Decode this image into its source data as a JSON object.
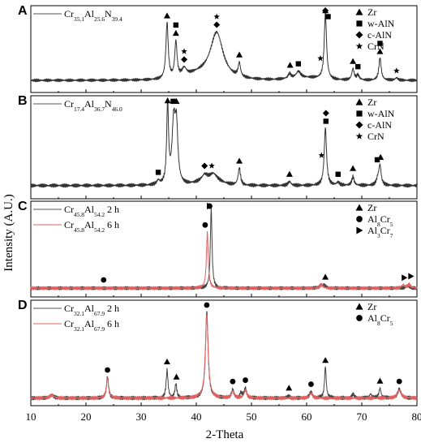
{
  "chart_data": {
    "type": "line",
    "xlabel": "2-Theta",
    "ylabel": "Intensity (A.U.)",
    "xlim": [
      10,
      80
    ],
    "x_ticks": [
      "10",
      "20",
      "30",
      "40",
      "50",
      "60",
      "70",
      "80"
    ],
    "panels": [
      {
        "letter": "A",
        "legend_rows": [
          {
            "text": "Cr35.1Al25.6N39.4",
            "parts": [
              [
                "Cr",
                ""
              ],
              [
                "35.1",
                "sub"
              ],
              [
                "Al",
                ""
              ],
              [
                "25.6",
                "sub"
              ],
              [
                "N",
                ""
              ],
              [
                "39.4",
                "sub"
              ]
            ],
            "color": "#555555"
          }
        ],
        "marker_legend": [
          {
            "symbol": "triangle",
            "text": "Zr"
          },
          {
            "symbol": "square",
            "text": "w-AlN"
          },
          {
            "symbol": "diamond",
            "text": "c-AlN"
          },
          {
            "symbol": "star",
            "text": "CrN"
          }
        ],
        "series": [
          {
            "name": "Cr35.1Al25.6N39.4",
            "color": "#333333",
            "baseline": 0.13,
            "peaks": [
              [
                34.7,
                0.7,
                0.25
              ],
              [
                36.3,
                0.45,
                0.25
              ],
              [
                37.8,
                0.1,
                0.5
              ],
              [
                43.7,
                0.58,
                1.4
              ],
              [
                47.8,
                0.17,
                0.25
              ],
              [
                56.9,
                0.06,
                0.3
              ],
              [
                58.5,
                0.08,
                0.5
              ],
              [
                63.4,
                0.82,
                0.25
              ],
              [
                68.4,
                0.14,
                0.25
              ],
              [
                69.3,
                0.06,
                0.3
              ],
              [
                73.3,
                0.28,
                0.25
              ],
              [
                76.3,
                0.03,
                0.3
              ]
            ],
            "bumps": [
              [
                40.5,
                0.06,
                3
              ],
              [
                60,
                0.03,
                4
              ]
            ]
          }
        ],
        "peak_marks": [
          {
            "x": 34.7,
            "sym": [
              "triangle"
            ]
          },
          {
            "x": 36.3,
            "sym": [
              "triangle",
              "square"
            ]
          },
          {
            "x": 37.8,
            "sym": [
              "diamond",
              "star"
            ]
          },
          {
            "x": 43.7,
            "sym": [
              "diamond",
              "star"
            ]
          },
          {
            "x": 47.8,
            "sym": [
              "triangle"
            ]
          },
          {
            "x": 57.0,
            "sym": [
              "triangle"
            ]
          },
          {
            "x": 58.5,
            "sym": [
              "square"
            ]
          },
          {
            "x": 63.4,
            "sym": [
              "diamond",
              "triangle"
            ]
          },
          {
            "x": 62.5,
            "sym": [
              "star"
            ]
          },
          {
            "x": 63.9,
            "sym": [
              "square"
            ]
          },
          {
            "x": 68.4,
            "sym": [
              "triangle"
            ]
          },
          {
            "x": 69.3,
            "sym": [
              "square"
            ]
          },
          {
            "x": 73.3,
            "sym": [
              "triangle",
              "square"
            ]
          },
          {
            "x": 76.3,
            "sym": [
              "star"
            ]
          }
        ]
      },
      {
        "letter": "B",
        "legend_rows": [
          {
            "text": "Cr17.4Al36.7N46.0",
            "parts": [
              [
                "Cr",
                ""
              ],
              [
                "17.4",
                "sub"
              ],
              [
                "Al",
                ""
              ],
              [
                "36.7",
                "sub"
              ],
              [
                "N",
                ""
              ],
              [
                "46.0",
                "sub"
              ]
            ],
            "color": "#555555"
          }
        ],
        "marker_legend": [
          {
            "symbol": "triangle",
            "text": "Zr"
          },
          {
            "symbol": "square",
            "text": "w-AlN"
          },
          {
            "symbol": "diamond",
            "text": "c-AlN"
          },
          {
            "symbol": "star",
            "text": "CrN"
          }
        ],
        "series": [
          {
            "name": "Cr17.4Al36.7N46.0",
            "color": "#333333",
            "baseline": 0.12,
            "peaks": [
              [
                33.1,
                0.04,
                0.3
              ],
              [
                34.8,
                0.82,
                0.2
              ],
              [
                35.9,
                0.62,
                0.35
              ],
              [
                36.4,
                0.55,
                0.3
              ],
              [
                41.5,
                0.06,
                0.6
              ],
              [
                43.1,
                0.07,
                0.8
              ],
              [
                47.8,
                0.18,
                0.25
              ],
              [
                56.9,
                0.04,
                0.3
              ],
              [
                63.4,
                0.6,
                0.25
              ],
              [
                65.7,
                0.03,
                0.3
              ],
              [
                68.4,
                0.09,
                0.25
              ],
              [
                72.9,
                0.06,
                0.3
              ],
              [
                73.3,
                0.2,
                0.25
              ]
            ],
            "bumps": [
              [
                42.5,
                0.05,
                3
              ]
            ]
          }
        ],
        "peak_marks": [
          {
            "x": 33.1,
            "sym": [
              "square"
            ]
          },
          {
            "x": 34.8,
            "sym": [
              "triangle"
            ]
          },
          {
            "x": 35.8,
            "sym": [
              "square"
            ]
          },
          {
            "x": 36.4,
            "sym": [
              "triangle"
            ]
          },
          {
            "x": 41.5,
            "sym": [
              "diamond"
            ]
          },
          {
            "x": 42.8,
            "sym": [
              "star"
            ]
          },
          {
            "x": 47.8,
            "sym": [
              "triangle"
            ]
          },
          {
            "x": 56.9,
            "sym": [
              "triangle"
            ]
          },
          {
            "x": 62.7,
            "sym": [
              "star"
            ]
          },
          {
            "x": 63.5,
            "sym": [
              "square",
              "diamond"
            ]
          },
          {
            "x": 65.7,
            "sym": [
              "square"
            ]
          },
          {
            "x": 68.4,
            "sym": [
              "triangle"
            ]
          },
          {
            "x": 72.8,
            "sym": [
              "square"
            ]
          },
          {
            "x": 73.4,
            "sym": [
              "triangle"
            ]
          }
        ]
      },
      {
        "letter": "C",
        "legend_rows": [
          {
            "text": "Cr45.8Al54.2 2 h",
            "parts": [
              [
                "Cr",
                ""
              ],
              [
                "45.8",
                "sub"
              ],
              [
                "Al",
                ""
              ],
              [
                "54.2",
                "sub"
              ],
              [
                " 2 h",
                ""
              ]
            ],
            "color": "#555555"
          },
          {
            "text": "Cr45.8Al54.2 6 h",
            "parts": [
              [
                "Cr",
                ""
              ],
              [
                "45.8",
                "sub"
              ],
              [
                "Al",
                ""
              ],
              [
                "54.2",
                "sub"
              ],
              [
                " 6 h",
                ""
              ]
            ],
            "color": "#e06060"
          }
        ],
        "marker_legend": [
          {
            "symbol": "triangle",
            "text": "Zr"
          },
          {
            "symbol": "circle",
            "text": "Al8Cr5",
            "parts": [
              [
                "Al",
                ""
              ],
              [
                "8",
                "sub"
              ],
              [
                "Cr",
                ""
              ],
              [
                "5",
                "sub"
              ]
            ]
          },
          {
            "symbol": "right-triangle",
            "text": "Al3Cr7",
            "parts": [
              [
                "Al",
                ""
              ],
              [
                "3",
                "sub"
              ],
              [
                "Cr",
                ""
              ],
              [
                "7",
                "sub"
              ]
            ]
          }
        ],
        "series": [
          {
            "name": "Cr45.8Al54.2 2 h",
            "color": "#444444",
            "baseline": 0.08,
            "peaks": [
              [
                42.7,
                0.9,
                0.18
              ],
              [
                62.5,
                0.04,
                0.3
              ],
              [
                63.2,
                0.03,
                0.3
              ],
              [
                78.2,
                0.03,
                0.3
              ]
            ],
            "bumps": []
          },
          {
            "name": "Cr45.8Al54.2 6 h",
            "color": "#e06060",
            "baseline": 0.08,
            "peaks": [
              [
                42.0,
                0.62,
                0.2
              ],
              [
                62.7,
                0.04,
                0.3
              ],
              [
                77.5,
                0.04,
                0.3
              ],
              [
                78.6,
                0.04,
                0.3
              ]
            ],
            "bumps": []
          }
        ],
        "peak_marks": [
          {
            "x": 23.2,
            "sym": [
              "circle"
            ]
          },
          {
            "x": 41.6,
            "sym": [
              "circle"
            ]
          },
          {
            "x": 42.4,
            "sym": [
              "right-triangle",
              "circle",
              "circle",
              "right-triangle"
            ]
          },
          {
            "x": 63.4,
            "sym": [
              "triangle"
            ]
          },
          {
            "x": 77.7,
            "sym": [
              "right-triangle"
            ]
          },
          {
            "x": 78.9,
            "sym": [
              "right-triangle"
            ]
          }
        ]
      },
      {
        "letter": "D",
        "legend_rows": [
          {
            "text": "Cr32.1Al67.9 2 h",
            "parts": [
              [
                "Cr",
                ""
              ],
              [
                "32.1",
                "sub"
              ],
              [
                "Al",
                ""
              ],
              [
                "67.9",
                "sub"
              ],
              [
                " 2 h",
                ""
              ]
            ],
            "color": "#555555"
          },
          {
            "text": "Cr32.1Al67.9 6 h",
            "parts": [
              [
                "Cr",
                ""
              ],
              [
                "32.1",
                "sub"
              ],
              [
                "Al",
                ""
              ],
              [
                "67.9",
                "sub"
              ],
              [
                " 6 h",
                ""
              ]
            ],
            "color": "#e06060"
          }
        ],
        "marker_legend": [
          {
            "symbol": "triangle",
            "text": "Zr"
          },
          {
            "symbol": "circle",
            "text": "Al8Cr5",
            "parts": [
              [
                "Al",
                ""
              ],
              [
                "8",
                "sub"
              ],
              [
                "Cr",
                ""
              ],
              [
                "5",
                "sub"
              ]
            ]
          }
        ],
        "series": [
          {
            "name": "Cr32.1Al67.9 2 h",
            "color": "#444444",
            "baseline": 0.06,
            "peaks": [
              [
                13.8,
                0.03,
                0.4
              ],
              [
                23.9,
                0.22,
                0.22
              ],
              [
                34.7,
                0.28,
                0.2
              ],
              [
                36.3,
                0.14,
                0.2
              ],
              [
                41.9,
                0.88,
                0.28
              ],
              [
                46.6,
                0.08,
                0.25
              ],
              [
                48.1,
                0.05,
                0.25
              ],
              [
                48.9,
                0.1,
                0.25
              ],
              [
                56.8,
                0.02,
                0.3
              ],
              [
                60.8,
                0.06,
                0.3
              ],
              [
                63.4,
                0.32,
                0.18
              ],
              [
                68.4,
                0.04,
                0.25
              ],
              [
                71.6,
                0.04,
                0.25
              ],
              [
                73.3,
                0.1,
                0.22
              ],
              [
                76.8,
                0.09,
                0.35
              ]
            ],
            "bumps": []
          },
          {
            "name": "Cr32.1Al67.9 6 h",
            "color": "#e06060",
            "baseline": 0.06,
            "peaks": [
              [
                13.8,
                0.03,
                0.4
              ],
              [
                23.9,
                0.2,
                0.24
              ],
              [
                41.9,
                0.85,
                0.3
              ],
              [
                46.6,
                0.07,
                0.28
              ],
              [
                48.9,
                0.08,
                0.28
              ],
              [
                60.8,
                0.05,
                0.3
              ],
              [
                76.8,
                0.08,
                0.4
              ]
            ],
            "bumps": []
          }
        ],
        "peak_marks": [
          {
            "x": 23.9,
            "sym": [
              "circle"
            ]
          },
          {
            "x": 34.7,
            "sym": [
              "triangle"
            ]
          },
          {
            "x": 36.4,
            "sym": [
              "triangle"
            ]
          },
          {
            "x": 41.9,
            "sym": [
              "circle"
            ]
          },
          {
            "x": 46.6,
            "sym": [
              "circle"
            ]
          },
          {
            "x": 48.9,
            "sym": [
              "circle"
            ]
          },
          {
            "x": 56.8,
            "sym": [
              "triangle"
            ]
          },
          {
            "x": 60.8,
            "sym": [
              "circle"
            ]
          },
          {
            "x": 63.4,
            "sym": [
              "triangle"
            ]
          },
          {
            "x": 73.3,
            "sym": [
              "triangle"
            ]
          },
          {
            "x": 76.8,
            "sym": [
              "circle"
            ]
          }
        ]
      }
    ]
  }
}
